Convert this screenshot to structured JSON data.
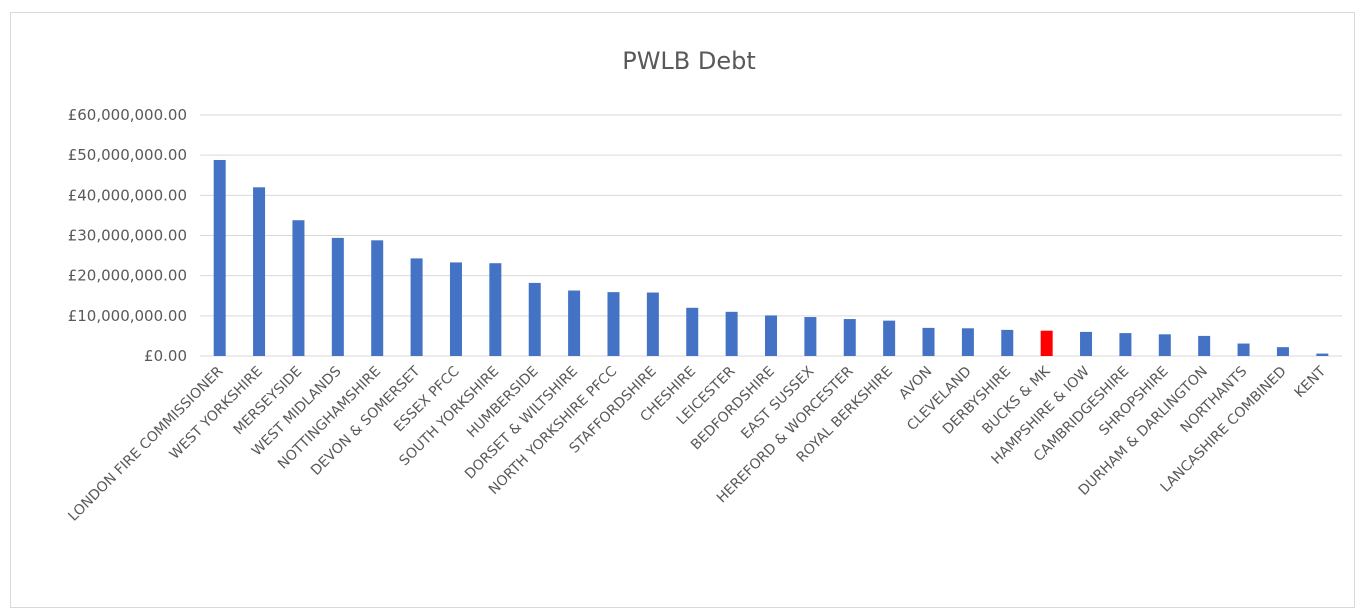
{
  "chart_data": {
    "type": "bar",
    "title": "PWLB Debt",
    "xlabel": "",
    "ylabel": "",
    "ylim": [
      0,
      60000000
    ],
    "yticks": [
      0,
      10000000,
      20000000,
      30000000,
      40000000,
      50000000,
      60000000
    ],
    "ytick_labels": [
      "£0.00",
      "£10,000,000.00",
      "£20,000,000.00",
      "£30,000,000.00",
      "£40,000,000.00",
      "£50,000,000.00",
      "£60,000,000.00"
    ],
    "grid": true,
    "legend": "none",
    "categories": [
      "LONDON FIRE COMMISSIONER",
      "WEST YORKSHIRE",
      "MERSEYSIDE",
      "WEST MIDLANDS",
      "NOTTINGHAMSHIRE",
      "DEVON & SOMERSET",
      "ESSEX PFCC",
      "SOUTH YORKSHIRE",
      "HUMBERSIDE",
      "DORSET & WILTSHIRE",
      "NORTH YORKSHIRE PFCC",
      "STAFFORDSHIRE",
      "CHESHIRE",
      "LEICESTER",
      "BEDFORDSHIRE",
      "EAST SUSSEX",
      "HEREFORD & WORCESTER",
      "ROYAL BERKSHIRE",
      "AVON",
      "CLEVELAND",
      "DERBYSHIRE",
      "BUCKS & MK",
      "HAMPSHIRE & IOW",
      "CAMBRIDGESHIRE",
      "SHROPSHIRE",
      "DURHAM & DARLINGTON",
      "NORTHANTS",
      "LANCASHIRE COMBINED",
      "KENT"
    ],
    "values": [
      48800000,
      42000000,
      33800000,
      29400000,
      28800000,
      24300000,
      23300000,
      23100000,
      18200000,
      16300000,
      15900000,
      15800000,
      12000000,
      11000000,
      10100000,
      9700000,
      9200000,
      8800000,
      7000000,
      6900000,
      6500000,
      6300000,
      6000000,
      5700000,
      5400000,
      5000000,
      3100000,
      2200000,
      600000
    ],
    "colors": {
      "default_bar": "#4472c4",
      "highlight_bar": "#ff0000",
      "highlight_category": "BUCKS & MK"
    }
  }
}
